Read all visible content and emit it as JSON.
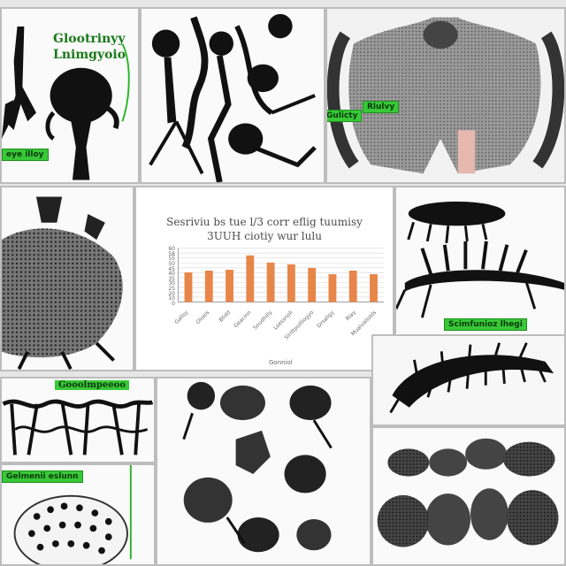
{
  "panels": {
    "p1": {
      "label_lines": [
        "Glootrinyy",
        "Lnimgyoio"
      ],
      "tag": "eye illoy"
    },
    "p3": {
      "tags": [
        "Gulicty",
        "Rlulvy"
      ]
    },
    "p5": {
      "tag": "Scimfunioz lhegi"
    },
    "p7": {
      "strip": "Gooolmpeeoo",
      "tag": "Gelmenii eslunn"
    }
  },
  "chart_data": {
    "type": "bar",
    "title": [
      "Sesriviu bs tue l/3 corr eflig tuumisy",
      "3UUH ciotiy wur lulu"
    ],
    "categories": [
      "Gallsy",
      "Oloeis",
      "Blidd",
      "Geacinn",
      "Soudhilly",
      "Loessnoli",
      "Slrittpoilliogyo",
      "Drsaligy",
      "Rlay",
      "Mualvaliolds"
    ],
    "values": [
      33,
      35,
      36,
      52,
      44,
      42,
      38,
      31,
      35,
      31
    ],
    "ylim": [
      0,
      60
    ],
    "yticks": [
      "60",
      "58",
      "55",
      "50",
      "45",
      "40",
      "35",
      "30",
      "25",
      "20",
      "10",
      "0"
    ],
    "xlabel": "Gonniol",
    "bar_color": "#e8864a",
    "grid": true
  }
}
